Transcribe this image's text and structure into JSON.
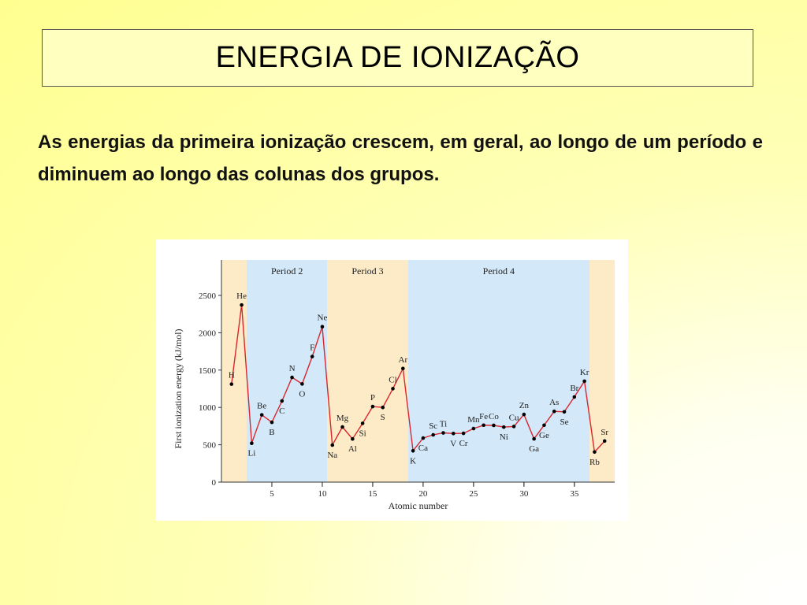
{
  "slide": {
    "title": "ENERGIA DE IONIZAÇÃO",
    "body": "As energias da primeira ionização crescem, em geral, ao longo de um período e diminuem ao longo das colunas dos grupos."
  },
  "colors": {
    "line": "#d9262e",
    "marker": "#000000",
    "band_orange": "#fdebc7",
    "band_blue": "#d3e8f8"
  },
  "chart_data": {
    "type": "line",
    "xlabel": "Atomic number",
    "ylabel": "First ionization energy (kJ/mol)",
    "xlim": [
      0,
      39
    ],
    "ylim": [
      0,
      2500
    ],
    "xticks": [
      5,
      10,
      15,
      20,
      25,
      30,
      35
    ],
    "yticks": [
      0,
      500,
      1000,
      1500,
      2000,
      2500
    ],
    "grid": false,
    "bands": [
      {
        "from": 0,
        "to": 2.5,
        "label": "",
        "color": "orange"
      },
      {
        "from": 2.5,
        "to": 10.5,
        "label": "Period 2",
        "color": "blue"
      },
      {
        "from": 10.5,
        "to": 18.5,
        "label": "Period 3",
        "color": "orange"
      },
      {
        "from": 18.5,
        "to": 36.5,
        "label": "Period 4",
        "color": "blue"
      },
      {
        "from": 36.5,
        "to": 39,
        "label": "",
        "color": "orange"
      }
    ],
    "series": [
      {
        "x": [
          1,
          2,
          3,
          4,
          5,
          6,
          7,
          8,
          9,
          10,
          11,
          12,
          13,
          14,
          15,
          16,
          17,
          18,
          19,
          20,
          21,
          22,
          23,
          24,
          25,
          26,
          27,
          28,
          29,
          30,
          31,
          32,
          33,
          34,
          35,
          36,
          37,
          38
        ],
        "y": [
          1312,
          2372,
          520,
          900,
          801,
          1086,
          1402,
          1314,
          1681,
          2081,
          496,
          738,
          578,
          787,
          1012,
          1000,
          1251,
          1521,
          419,
          590,
          633,
          659,
          651,
          653,
          717,
          762,
          760,
          737,
          745,
          906,
          579,
          762,
          947,
          941,
          1140,
          1351,
          403,
          550
        ]
      }
    ],
    "point_labels": [
      "H",
      "He",
      "Li",
      "Be",
      "B",
      "C",
      "N",
      "O",
      "F",
      "Ne",
      "Na",
      "Mg",
      "Al",
      "Si",
      "P",
      "S",
      "Cl",
      "Ar",
      "K",
      "Ca",
      "Sc",
      "Ti",
      "V",
      "Cr",
      "Mn",
      "Fe",
      "Co",
      "Ni",
      "Cu",
      "Zn",
      "Ga",
      "Ge",
      "As",
      "Se",
      "Br",
      "Kr",
      "Rb",
      "Sr"
    ]
  }
}
